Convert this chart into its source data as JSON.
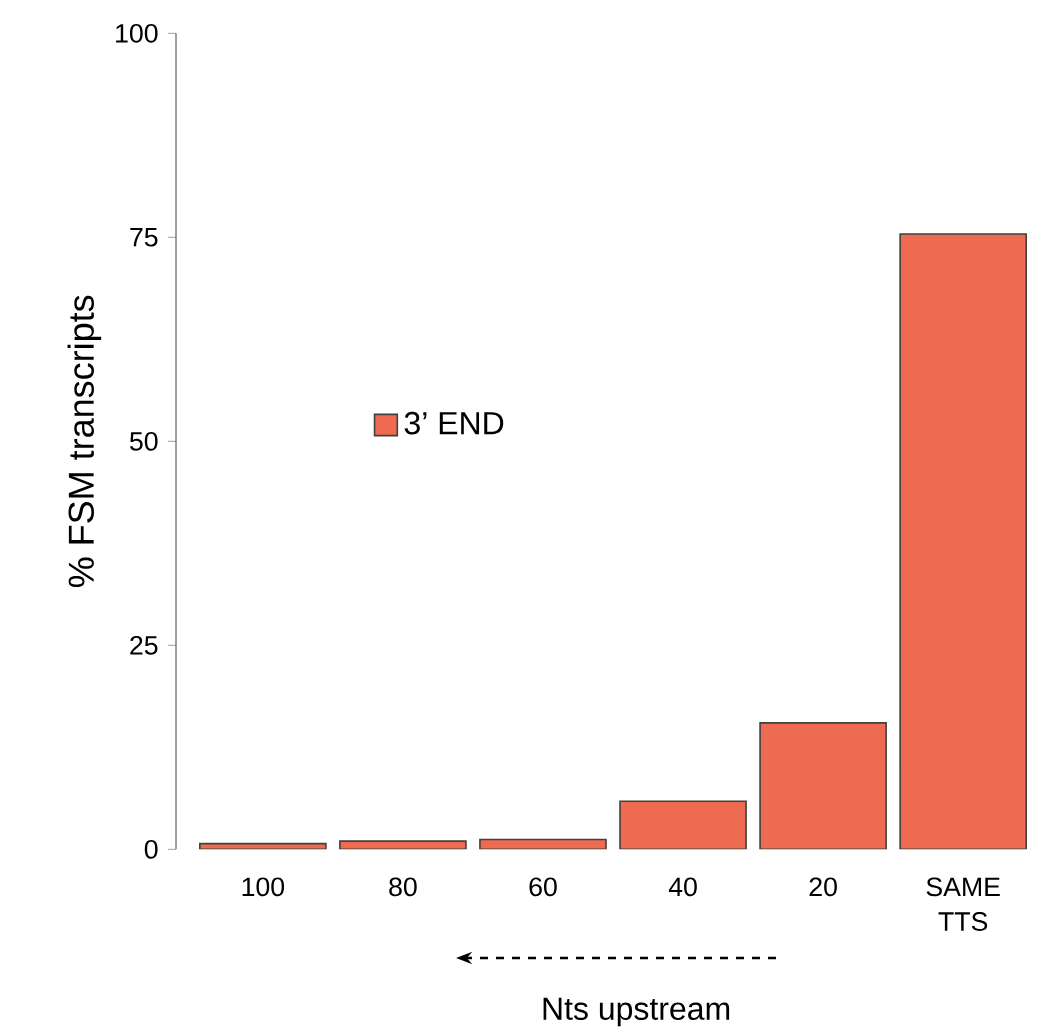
{
  "chart_data": {
    "type": "bar",
    "ylabel": "% FSM transcripts",
    "xlabel": "Nts upstream",
    "categories": [
      "100",
      "80",
      "60",
      "40",
      "20",
      "SAME TTS"
    ],
    "series": [
      {
        "name": "3’ END",
        "color": "#ee6a50",
        "values": [
          0.7,
          1.0,
          1.2,
          5.9,
          15.5,
          75.4
        ]
      }
    ],
    "ylim": [
      0,
      100
    ],
    "yticks": [
      0,
      25,
      50,
      75,
      100
    ],
    "grid": false,
    "legend": "left"
  }
}
